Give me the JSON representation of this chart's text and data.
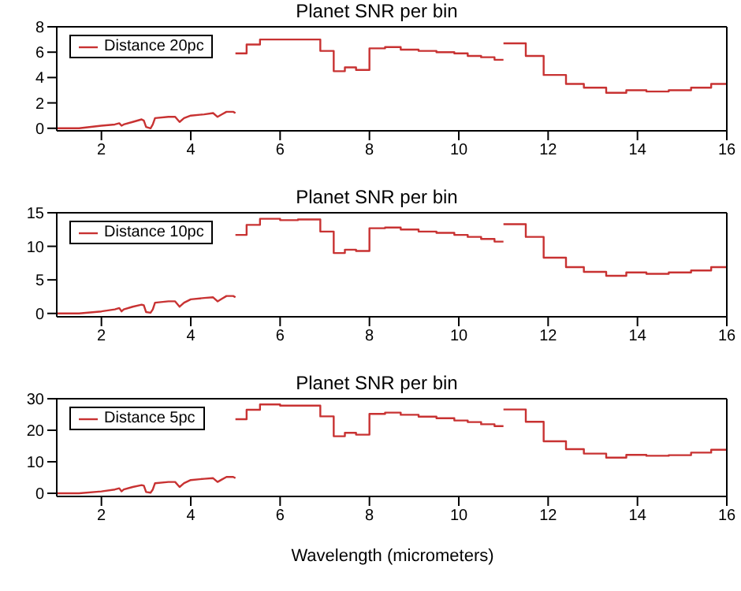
{
  "chart_data": [
    {
      "type": "line",
      "title": "Planet SNR per bin",
      "xlim": [
        1,
        16
      ],
      "xticks": [
        2,
        4,
        6,
        8,
        10,
        12,
        14,
        16
      ],
      "ylim": [
        -0.2,
        8
      ],
      "yticks": [
        0,
        2,
        4,
        6,
        8
      ],
      "legend": "top left",
      "grid": false,
      "series": [
        {
          "name": "Distance 20pc",
          "type": "line",
          "color": "#c83232",
          "x": [
            1.0,
            1.5,
            2.0,
            2.3,
            2.4,
            2.45,
            2.5,
            2.7,
            2.9,
            2.95,
            3.0,
            3.1,
            3.15,
            3.2,
            3.5,
            3.65,
            3.75,
            3.85,
            4.0,
            4.3,
            4.5,
            4.6,
            4.7,
            4.8,
            4.95,
            5.0
          ],
          "values": [
            0.0,
            0.0,
            0.2,
            0.3,
            0.4,
            0.2,
            0.3,
            0.5,
            0.7,
            0.6,
            0.1,
            0.0,
            0.3,
            0.8,
            0.9,
            0.9,
            0.5,
            0.8,
            1.0,
            1.1,
            1.2,
            0.9,
            1.1,
            1.3,
            1.3,
            1.2
          ]
        },
        {
          "type": "step",
          "color": "#c83232",
          "x": [
            5.0,
            5.25,
            5.55,
            6.0,
            6.4,
            6.9,
            7.2,
            7.45,
            7.7,
            8.0,
            8.35,
            8.7,
            9.1,
            9.5,
            9.9,
            10.2,
            10.5,
            10.8,
            11.0
          ],
          "values": [
            5.9,
            6.6,
            7.0,
            7.0,
            7.0,
            6.1,
            4.5,
            4.8,
            4.6,
            6.3,
            6.4,
            6.2,
            6.1,
            6.0,
            5.9,
            5.7,
            5.6,
            5.4,
            5.4
          ]
        },
        {
          "type": "step",
          "color": "#c83232",
          "x": [
            11.0,
            11.5,
            11.9,
            12.4,
            12.8,
            13.3,
            13.75,
            14.2,
            14.7,
            15.2,
            15.65,
            16.0
          ],
          "values": [
            6.7,
            5.7,
            4.2,
            3.5,
            3.2,
            2.8,
            3.0,
            2.9,
            3.0,
            3.2,
            3.5,
            3.5
          ]
        }
      ]
    },
    {
      "type": "line",
      "title": "Planet SNR per bin",
      "xlim": [
        1,
        16
      ],
      "xticks": [
        2,
        4,
        6,
        8,
        10,
        12,
        14,
        16
      ],
      "ylim": [
        -0.5,
        15
      ],
      "yticks": [
        0,
        5,
        10,
        15
      ],
      "legend": "top left",
      "grid": false,
      "series": [
        {
          "name": "Distance 10pc",
          "type": "line",
          "color": "#c83232",
          "x": [
            1.0,
            1.5,
            2.0,
            2.3,
            2.4,
            2.45,
            2.5,
            2.7,
            2.9,
            2.95,
            3.0,
            3.1,
            3.15,
            3.2,
            3.5,
            3.65,
            3.75,
            3.85,
            4.0,
            4.3,
            4.5,
            4.6,
            4.7,
            4.8,
            4.95,
            5.0
          ],
          "values": [
            0.0,
            0.0,
            0.3,
            0.6,
            0.8,
            0.3,
            0.6,
            1.0,
            1.3,
            1.2,
            0.2,
            0.1,
            0.6,
            1.6,
            1.8,
            1.8,
            1.0,
            1.6,
            2.1,
            2.3,
            2.4,
            1.8,
            2.2,
            2.6,
            2.6,
            2.4
          ]
        },
        {
          "type": "step",
          "color": "#c83232",
          "x": [
            5.0,
            5.25,
            5.55,
            6.0,
            6.4,
            6.9,
            7.2,
            7.45,
            7.7,
            8.0,
            8.35,
            8.7,
            9.1,
            9.5,
            9.9,
            10.2,
            10.5,
            10.8,
            11.0
          ],
          "values": [
            11.7,
            13.2,
            14.1,
            13.9,
            14.0,
            12.2,
            9.0,
            9.5,
            9.3,
            12.7,
            12.8,
            12.5,
            12.2,
            12.0,
            11.7,
            11.4,
            11.1,
            10.7,
            10.7
          ]
        },
        {
          "type": "step",
          "color": "#c83232",
          "x": [
            11.0,
            11.5,
            11.9,
            12.4,
            12.8,
            13.3,
            13.75,
            14.2,
            14.7,
            15.2,
            15.65,
            16.0
          ],
          "values": [
            13.3,
            11.4,
            8.3,
            6.9,
            6.2,
            5.6,
            6.1,
            5.9,
            6.1,
            6.4,
            6.9,
            6.9
          ]
        }
      ]
    },
    {
      "type": "line",
      "title": "Planet SNR per bin",
      "xlabel": "Wavelength (micrometers)",
      "xlim": [
        1,
        16
      ],
      "xticks": [
        2,
        4,
        6,
        8,
        10,
        12,
        14,
        16
      ],
      "ylim": [
        -1,
        30
      ],
      "yticks": [
        0,
        10,
        20,
        30
      ],
      "legend": "top left",
      "grid": false,
      "series": [
        {
          "name": "Distance 5pc",
          "type": "line",
          "color": "#c83232",
          "x": [
            1.0,
            1.5,
            2.0,
            2.3,
            2.4,
            2.45,
            2.5,
            2.7,
            2.9,
            2.95,
            3.0,
            3.1,
            3.15,
            3.2,
            3.5,
            3.65,
            3.75,
            3.85,
            4.0,
            4.3,
            4.5,
            4.6,
            4.7,
            4.8,
            4.95,
            5.0
          ],
          "values": [
            0.0,
            0.0,
            0.6,
            1.2,
            1.6,
            0.6,
            1.2,
            2.0,
            2.6,
            2.4,
            0.4,
            0.2,
            1.2,
            3.2,
            3.6,
            3.6,
            2.0,
            3.2,
            4.2,
            4.6,
            4.8,
            3.6,
            4.4,
            5.2,
            5.2,
            4.8
          ]
        },
        {
          "type": "step",
          "color": "#c83232",
          "x": [
            5.0,
            5.25,
            5.55,
            6.0,
            6.4,
            6.9,
            7.2,
            7.45,
            7.7,
            8.0,
            8.35,
            8.7,
            9.1,
            9.5,
            9.9,
            10.2,
            10.5,
            10.8,
            11.0
          ],
          "values": [
            23.5,
            26.5,
            28.2,
            27.8,
            27.8,
            24.4,
            18.1,
            19.2,
            18.6,
            25.2,
            25.6,
            24.9,
            24.3,
            23.8,
            23.1,
            22.6,
            21.9,
            21.3,
            21.3
          ]
        },
        {
          "type": "step",
          "color": "#c83232",
          "x": [
            11.0,
            11.5,
            11.9,
            12.4,
            12.8,
            13.3,
            13.75,
            14.2,
            14.7,
            15.2,
            15.65,
            16.0
          ],
          "values": [
            26.6,
            22.7,
            16.5,
            14.0,
            12.6,
            11.3,
            12.2,
            11.9,
            12.1,
            12.9,
            13.8,
            13.8
          ]
        }
      ]
    }
  ]
}
